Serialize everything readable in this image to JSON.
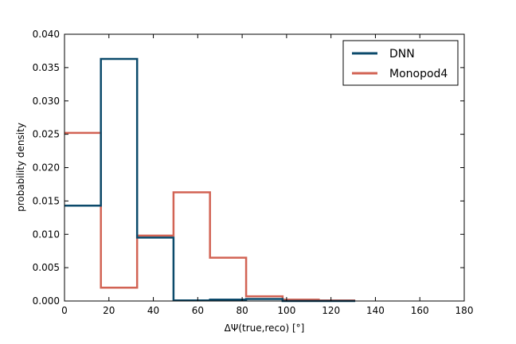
{
  "chart_data": {
    "type": "histogram",
    "xlabel": "ΔΨ(true,reco) [°]",
    "ylabel": "probability density",
    "xlim": [
      0,
      180
    ],
    "ylim": [
      0,
      0.04
    ],
    "xticks": [
      0,
      20,
      40,
      60,
      80,
      100,
      120,
      140,
      160,
      180
    ],
    "yticks": [
      "0.000",
      "0.005",
      "0.010",
      "0.015",
      "0.020",
      "0.025",
      "0.030",
      "0.035",
      "0.040"
    ],
    "bin_edges": [
      0,
      16.4,
      32.7,
      49.1,
      65.5,
      81.8,
      98.2,
      114.5,
      130.9
    ],
    "series": [
      {
        "name": "DNN",
        "color": "#0b4a6b",
        "values": [
          0.0143,
          0.0363,
          0.0095,
          0.0001,
          0.0002,
          0.0003,
          0.0,
          0.0
        ]
      },
      {
        "name": "Monopod4",
        "color": "#d26354",
        "values": [
          0.0252,
          0.002,
          0.0098,
          0.0163,
          0.0065,
          0.0007,
          0.0002,
          0.0001
        ]
      }
    ],
    "legend_position": "top-right",
    "grid": false
  }
}
